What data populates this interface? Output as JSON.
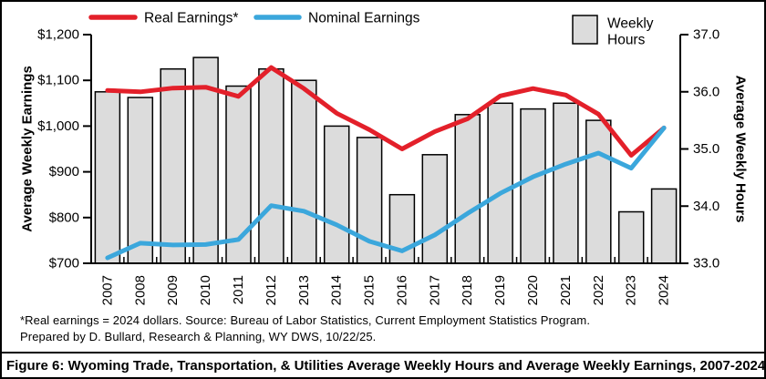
{
  "figure": {
    "caption": "Figure 6:  Wyoming Trade, Transportation, & Utilities Average Weekly Hours and Average Weekly Earnings, 2007-2024",
    "footnote_line1": "*Real earnings = 2024 dollars. Source: Bureau of Labor Statistics, Current Employment Statistics Program.",
    "footnote_line2": "Prepared by D. Bullard, Research & Planning, WY DWS, 10/22/25."
  },
  "colors": {
    "real_line": "#e3202a",
    "nominal_line": "#3ba7dc",
    "bar_fill": "#dcdcdc",
    "bar_stroke": "#000000",
    "axis": "#000000"
  },
  "chart_data": {
    "type": "combo",
    "title": "",
    "categories": [
      "2007",
      "2008",
      "2009",
      "2010",
      "2011",
      "2012",
      "2013",
      "2014",
      "2015",
      "2016",
      "2017",
      "2018",
      "2019",
      "2020",
      "2021",
      "2022",
      "2023",
      "2024"
    ],
    "series": [
      {
        "name": "Weekly Hours",
        "kind": "bar",
        "axis": "right",
        "values": [
          36.0,
          35.9,
          36.4,
          36.6,
          36.1,
          36.4,
          36.2,
          35.4,
          35.2,
          34.2,
          34.9,
          35.6,
          35.8,
          35.7,
          35.8,
          35.5,
          33.9,
          34.3
        ]
      },
      {
        "name": "Real Earnings*",
        "kind": "line",
        "axis": "left",
        "color_ref": "real_line",
        "values": [
          1078,
          1075,
          1083,
          1085,
          1065,
          1128,
          1082,
          1028,
          992,
          950,
          988,
          1016,
          1066,
          1082,
          1068,
          1026,
          936,
          996
        ]
      },
      {
        "name": "Nominal Earnings",
        "kind": "line",
        "axis": "left",
        "color_ref": "nominal_line",
        "values": [
          712,
          744,
          740,
          741,
          752,
          826,
          814,
          784,
          748,
          727,
          762,
          809,
          853,
          889,
          917,
          941,
          908,
          996
        ]
      }
    ],
    "left_axis": {
      "title": "Average Weekly Earnings",
      "min": 700,
      "max": 1200,
      "tick_values": [
        1200,
        1100,
        1000,
        900,
        800,
        700
      ],
      "tick_labels": [
        "$1,200",
        "$1,100",
        "$1,000",
        "$900",
        "$800",
        "$700"
      ]
    },
    "right_axis": {
      "title": "Average Weekly Hours",
      "min": 33.0,
      "max": 37.0,
      "tick_values": [
        37,
        36,
        35,
        34,
        33
      ],
      "tick_labels": [
        "37.0",
        "36.0",
        "35.0",
        "34.0",
        "33.0"
      ]
    },
    "legend_position": "top",
    "grid": false
  }
}
